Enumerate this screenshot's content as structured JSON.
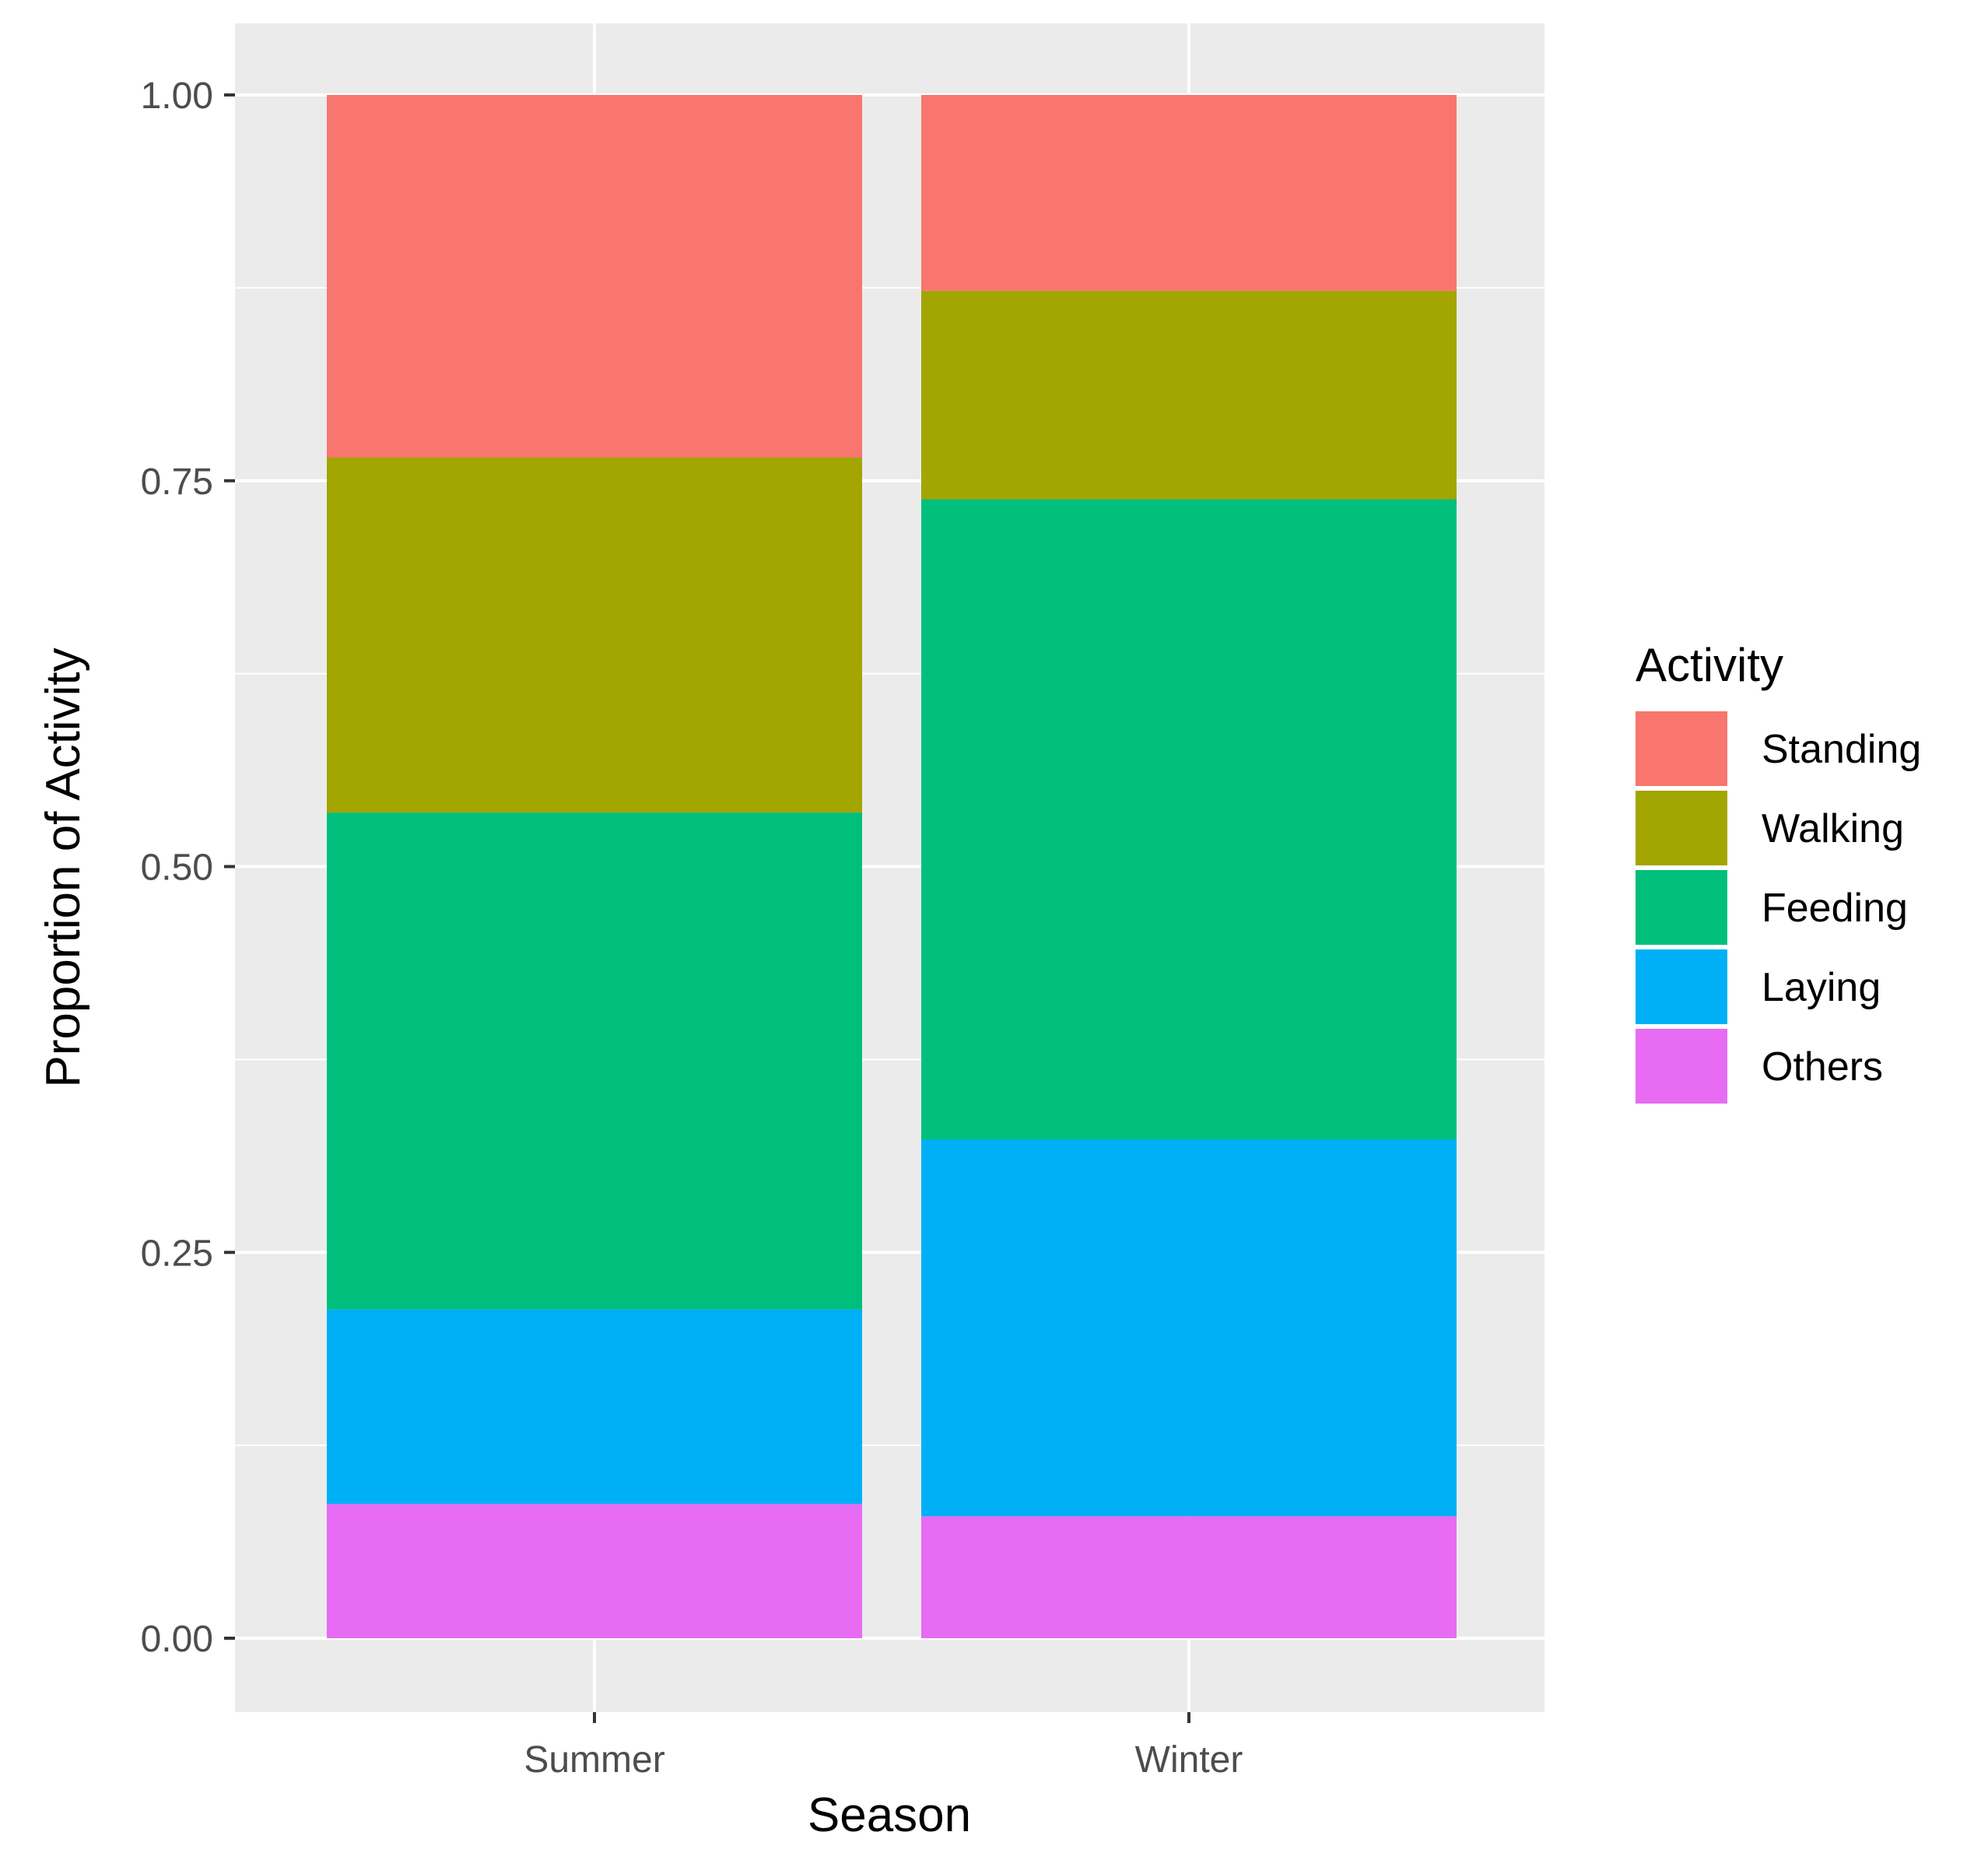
{
  "chart_data": {
    "type": "bar",
    "stacked": true,
    "position": "fill",
    "categories": [
      "Summer",
      "Winter"
    ],
    "series": [
      {
        "name": "Standing",
        "color": "#F8766D",
        "values": [
          0.235,
          0.127
        ]
      },
      {
        "name": "Walking",
        "color": "#A3A500",
        "values": [
          0.23,
          0.135
        ]
      },
      {
        "name": "Feeding",
        "color": "#00BF7D",
        "values": [
          0.322,
          0.415
        ]
      },
      {
        "name": "Laying",
        "color": "#00B0F6",
        "values": [
          0.126,
          0.244
        ]
      },
      {
        "name": "Others",
        "color": "#E76BF3",
        "values": [
          0.087,
          0.079
        ]
      }
    ],
    "title": "",
    "xlabel": "Season",
    "ylabel": "Proportion of Activity",
    "ylim": [
      0,
      1
    ],
    "yticks": [
      "0.00",
      "0.25",
      "0.50",
      "0.75",
      "1.00"
    ],
    "grid": true,
    "legend": {
      "title": "Activity",
      "position": "right"
    }
  }
}
